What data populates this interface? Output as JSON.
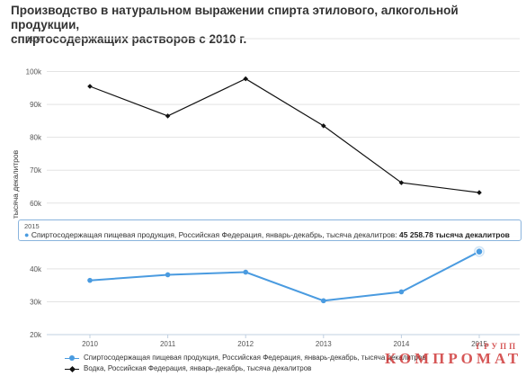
{
  "title": {
    "line1": "Производство в натуральном выражении спирта этилового, алкогольной продукции,",
    "line2": "спиртосодержащих растворов с 2010 г."
  },
  "tooltip": {
    "year": "2015",
    "text": "Спиртосодержащая пищевая продукция, Российская Федерация, январь-декабрь, тысяча декалитров:",
    "value": "45 258.78 тысяча декалитров"
  },
  "watermark": {
    "small": "ГРУПП",
    "big": "КОМПРОМАТ"
  },
  "chart_data": {
    "type": "line",
    "title": "Производство в натуральном выражении спирта этилового, алкогольной продукции, спиртосодержащих растворов с 2010 г.",
    "ylabel": "тысяча декалитров",
    "xlabel": "",
    "ylim": [
      20000,
      110000
    ],
    "yticks": [
      20000,
      30000,
      40000,
      50000,
      60000,
      70000,
      80000,
      90000,
      100000,
      110000
    ],
    "ytick_labels": [
      "20k",
      "30k",
      "40k",
      "50k",
      "60k",
      "70k",
      "80k",
      "90k",
      "100k",
      "110k"
    ],
    "categories": [
      "2010",
      "2011",
      "2012",
      "2013",
      "2014",
      "2015"
    ],
    "grid": true,
    "legend": "bottom",
    "series": [
      {
        "name": "Спиртосодержащая пищевая продукция, Российская Федерация, январь-декабрь, тысяча декалитров",
        "color": "#4a9be0",
        "marker": "circle",
        "values": [
          36500,
          38200,
          39000,
          30300,
          33000,
          45258.78
        ]
      },
      {
        "name": "Водка, Российская Федерация, январь-декабрь, тысяча декалитров",
        "color": "#111111",
        "marker": "diamond",
        "values": [
          95500,
          86500,
          97800,
          83500,
          66200,
          63200
        ]
      }
    ]
  }
}
